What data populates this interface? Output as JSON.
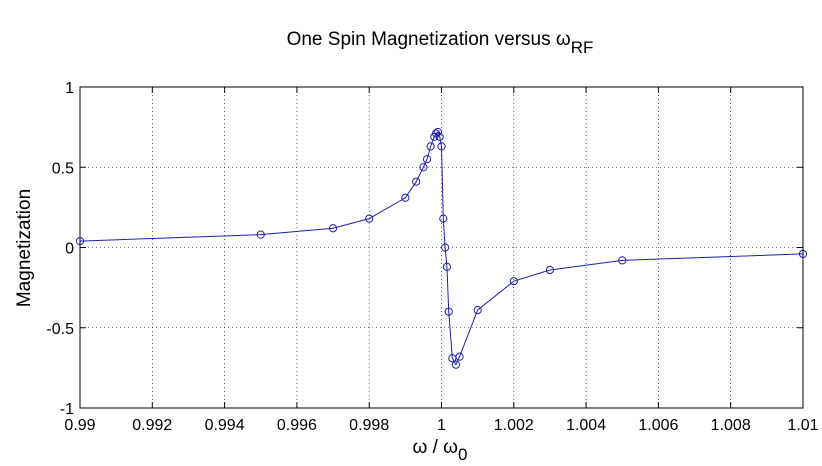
{
  "chart_data": {
    "type": "line",
    "title": "One Spin Magnetization versus ω",
    "title_subscript": "RF",
    "xlabel": "ω / ω",
    "xlabel_subscript": "0",
    "ylabel": "Magnetization",
    "xlim": [
      0.99,
      1.01
    ],
    "ylim": [
      -1,
      1
    ],
    "x_ticks": [
      0.99,
      0.992,
      0.994,
      0.996,
      0.998,
      1,
      1.002,
      1.004,
      1.006,
      1.008,
      1.01
    ],
    "x_tick_labels": [
      "0.99",
      "0.992",
      "0.994",
      "0.996",
      "0.998",
      "1",
      "1.002",
      "1.004",
      "1.006",
      "1.008",
      "1.01"
    ],
    "y_ticks": [
      -1,
      -0.5,
      0,
      0.5,
      1
    ],
    "y_tick_labels": [
      "-1",
      "-0.5",
      "0",
      "0.5",
      "1"
    ],
    "grid": true,
    "grid_style": "dotted",
    "marker": "circle",
    "series_color": "#1f1fa8",
    "series": [
      {
        "x": [
          0.99,
          0.995,
          0.997,
          0.998,
          0.999,
          0.9993,
          0.9995,
          0.9996,
          0.9997,
          0.9998,
          0.99985,
          0.9999,
          0.99995,
          1.0,
          1.00005,
          1.0001,
          1.00015,
          1.0002,
          1.0003,
          1.0004,
          1.0005,
          1.001,
          1.002,
          1.003,
          1.005,
          1.01
        ],
        "y": [
          0.04,
          0.08,
          0.12,
          0.18,
          0.31,
          0.41,
          0.5,
          0.55,
          0.63,
          0.69,
          0.71,
          0.72,
          0.69,
          0.63,
          0.18,
          0.0,
          -0.12,
          -0.4,
          -0.69,
          -0.73,
          -0.68,
          -0.39,
          -0.21,
          -0.14,
          -0.08,
          -0.04
        ]
      }
    ]
  }
}
